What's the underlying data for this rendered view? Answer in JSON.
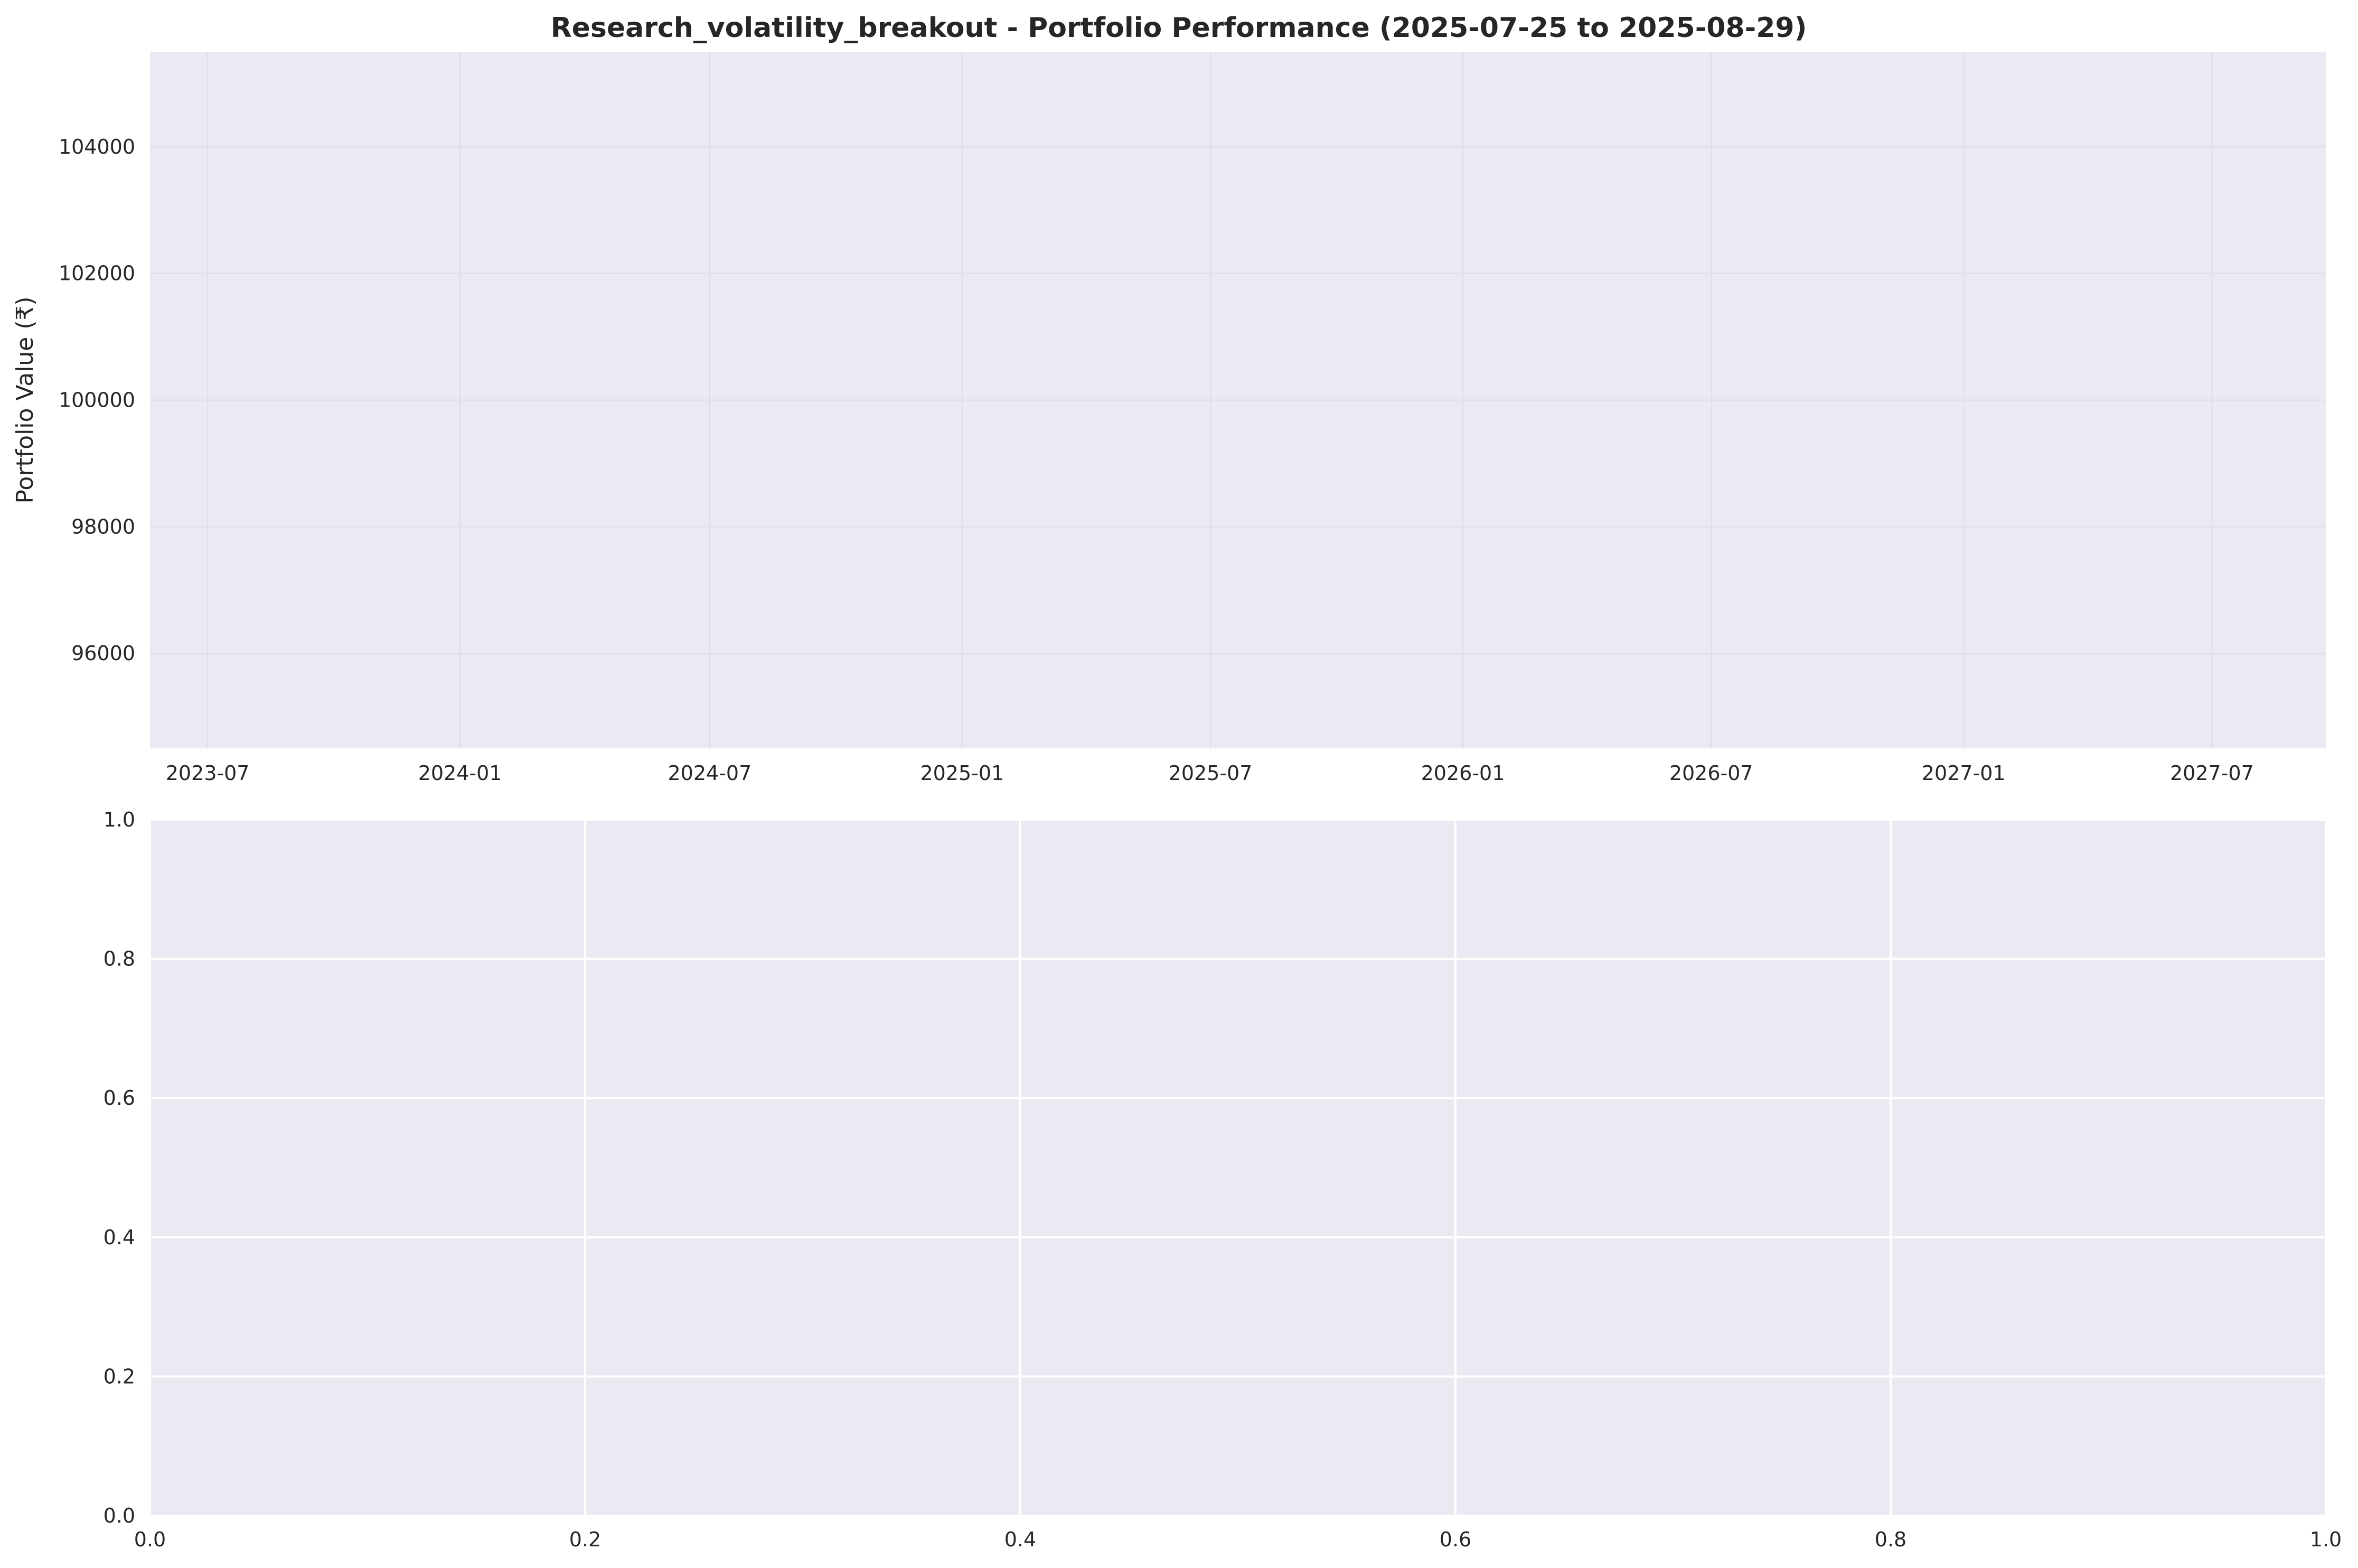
{
  "chart_data": [
    {
      "type": "line",
      "title": "Research_volatility_breakout - Portfolio Performance (2025-07-25 to 2025-08-29)",
      "xlabel": "",
      "ylabel": "Portfolio Value (₹)",
      "x_ticks": [
        "2023-07",
        "2024-01",
        "2024-07",
        "2025-01",
        "2025-07",
        "2026-01",
        "2026-07",
        "2027-01",
        "2027-07"
      ],
      "x_range": [
        "2023-05-20",
        "2027-09-22"
      ],
      "y_ticks": [
        96000,
        98000,
        100000,
        102000,
        104000
      ],
      "ylim": [
        94500,
        105500
      ],
      "series": [],
      "grid": true,
      "background": "#eaeaf2"
    },
    {
      "type": "line",
      "title": "",
      "xlabel": "",
      "ylabel": "",
      "x_ticks": [
        "0.0",
        "0.2",
        "0.4",
        "0.6",
        "0.8",
        "1.0"
      ],
      "xlim": [
        0,
        1
      ],
      "y_ticks": [
        "0.0",
        "0.2",
        "0.4",
        "0.6",
        "0.8",
        "1.0"
      ],
      "ylim": [
        0,
        1
      ],
      "series": [],
      "grid": true,
      "background": "#eaeaf2"
    }
  ]
}
